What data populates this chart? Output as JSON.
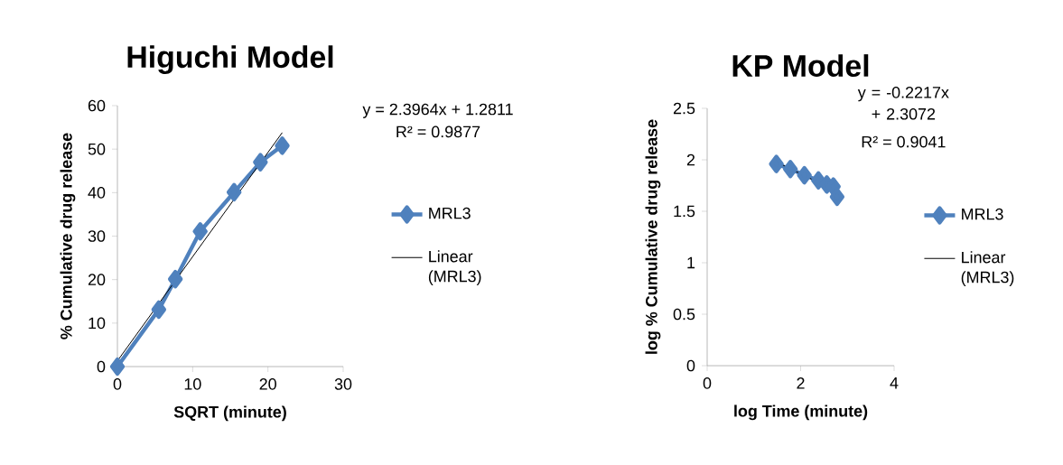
{
  "chart_data": [
    {
      "type": "line",
      "title": "Higuchi Model",
      "xlabel": "SQRT (minute)",
      "ylabel": "% Cumulative drug release",
      "xlim": [
        0,
        30
      ],
      "xticks": [
        0,
        10,
        20,
        30
      ],
      "ylim": [
        0,
        60
      ],
      "yticks": [
        0,
        10,
        20,
        30,
        40,
        50,
        60
      ],
      "grid": false,
      "legend": "right",
      "annotations": [
        "y = 2.3964x + 1.2811",
        "R² = 0.9877"
      ],
      "series": [
        {
          "name": "MRL3",
          "color": "#4f81bd",
          "marker": "diamond",
          "line_style": "solid",
          "x": [
            0,
            5.5,
            7.7,
            11.0,
            15.5,
            19.0,
            21.9
          ],
          "values": [
            0,
            13.1,
            20.1,
            31.1,
            40.1,
            47.0,
            50.8
          ]
        },
        {
          "name": "Linear (MRL3)",
          "type": "line",
          "color": "#000000",
          "marker": "none",
          "line_style": "solid",
          "x": [
            0,
            21.9
          ],
          "values": [
            1.3,
            53.8
          ]
        }
      ]
    },
    {
      "type": "line",
      "title": "KP Model",
      "xlabel": "log Time (minute)",
      "ylabel": "log % Cumulative drug release",
      "xlim": [
        0,
        4
      ],
      "xticks": [
        0,
        2,
        4
      ],
      "ylim": [
        0,
        2.5
      ],
      "yticks": [
        0,
        0.5,
        1,
        1.5,
        2,
        2.5
      ],
      "grid": false,
      "legend": "right",
      "annotations": [
        "y = -0.2217x + 2.3072",
        "R² = 0.9041"
      ],
      "series": [
        {
          "name": "MRL3",
          "color": "#4f81bd",
          "marker": "diamond",
          "line_style": "solid",
          "x": [
            1.48,
            1.78,
            2.08,
            2.38,
            2.56,
            2.7,
            2.78
          ],
          "values": [
            1.96,
            1.91,
            1.85,
            1.8,
            1.76,
            1.74,
            1.64
          ]
        },
        {
          "name": "Linear (MRL3)",
          "type": "line",
          "color": "#000000",
          "marker": "none",
          "line_style": "solid",
          "x": [
            1.48,
            2.78
          ],
          "values": [
            1.98,
            1.69
          ]
        }
      ]
    }
  ]
}
